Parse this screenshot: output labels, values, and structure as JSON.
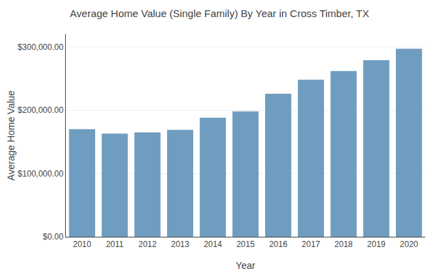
{
  "chart_data": {
    "type": "bar",
    "title": "Average Home Value (Single Family) By Year in Cross Timber, TX",
    "xlabel": "Year",
    "ylabel": "Average Home Value",
    "categories": [
      "2010",
      "2011",
      "2012",
      "2013",
      "2014",
      "2015",
      "2016",
      "2017",
      "2018",
      "2019",
      "2020"
    ],
    "values": [
      170000,
      163000,
      165000,
      169000,
      188000,
      198000,
      226000,
      248000,
      262000,
      279000,
      297000
    ],
    "color": "#6f9dc0",
    "ylim": [
      0,
      320000
    ],
    "yticks": [
      {
        "value": 0,
        "label": "$0.00"
      },
      {
        "value": 100000,
        "label": "$100,000.00"
      },
      {
        "value": 200000,
        "label": "$200,000.00"
      },
      {
        "value": 300000,
        "label": "$300,000.00"
      }
    ],
    "grid": true
  }
}
